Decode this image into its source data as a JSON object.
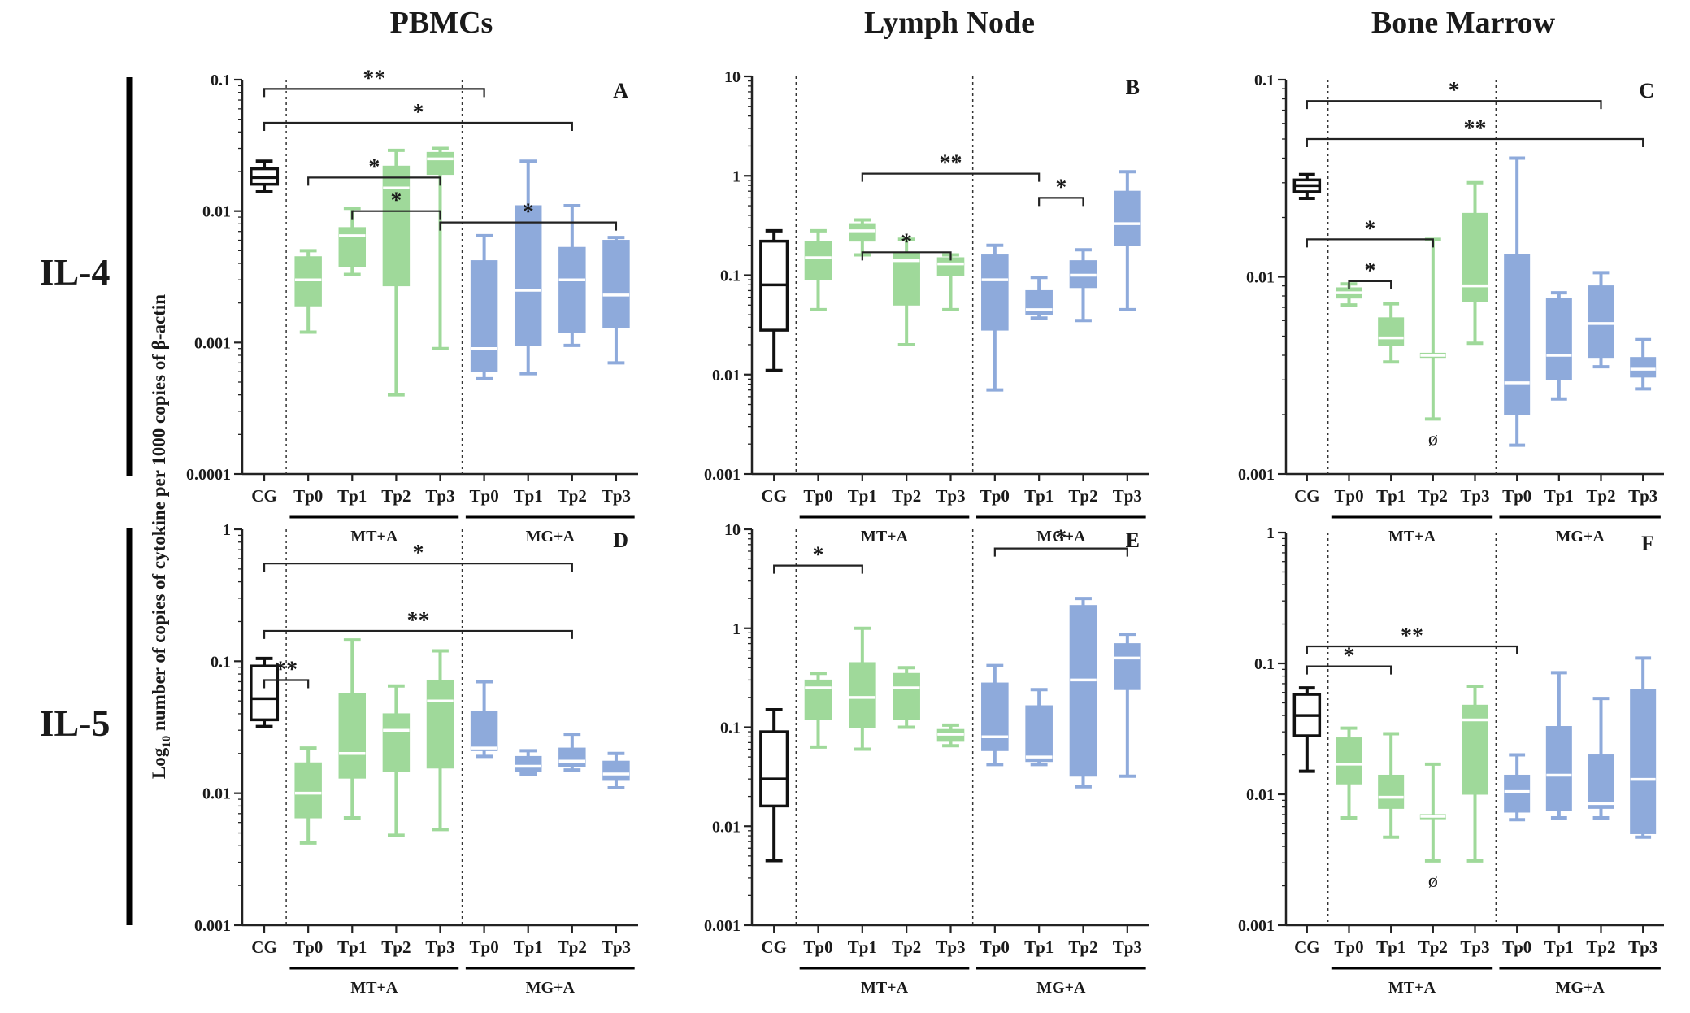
{
  "colors": {
    "cg": "#111111",
    "mt": "#9fd99a",
    "mg": "#8eaadb",
    "axis": "#222222"
  },
  "figure": {
    "column_titles": [
      "PBMCs",
      "Lymph Node",
      "Bone Marrow"
    ],
    "row_labels": [
      "IL-4",
      "IL-5"
    ],
    "ylabel_prefix": "Log",
    "ylabel_sub": "10",
    "ylabel_rest": " number of copies of cytokine per 1000 copies of β-actin",
    "groups": [
      "CG",
      "Tp0",
      "Tp1",
      "Tp2",
      "Tp3",
      "Tp0",
      "Tp1",
      "Tp2",
      "Tp3"
    ],
    "group_labels": [
      "MT+A",
      "MG+A"
    ]
  },
  "chart_data": [
    {
      "panel": "A",
      "type": "box",
      "cytokine": "IL-4",
      "tissue": "PBMCs",
      "scale": "log10",
      "ylim": [
        0.0001,
        0.1
      ],
      "ticks": [
        "0.1",
        "0.01",
        "0.001",
        "0.0001"
      ],
      "boxes": [
        {
          "group": "CG",
          "min": 0.014,
          "q1": 0.016,
          "median": 0.018,
          "q3": 0.021,
          "max": 0.024
        },
        {
          "group": "MT+A Tp0",
          "min": 0.0012,
          "q1": 0.0019,
          "median": 0.003,
          "q3": 0.0045,
          "max": 0.005
        },
        {
          "group": "MT+A Tp1",
          "min": 0.0033,
          "q1": 0.0038,
          "median": 0.0065,
          "q3": 0.0075,
          "max": 0.0105
        },
        {
          "group": "MT+A Tp2",
          "min": 0.0004,
          "q1": 0.0027,
          "median": 0.015,
          "q3": 0.022,
          "max": 0.029
        },
        {
          "group": "MT+A Tp3",
          "min": 0.0009,
          "q1": 0.019,
          "median": 0.025,
          "q3": 0.028,
          "max": 0.03
        },
        {
          "group": "MG+A Tp0",
          "min": 0.00053,
          "q1": 0.0006,
          "median": 0.0009,
          "q3": 0.0042,
          "max": 0.0065
        },
        {
          "group": "MG+A Tp1",
          "min": 0.00058,
          "q1": 0.00095,
          "median": 0.0025,
          "q3": 0.011,
          "max": 0.024
        },
        {
          "group": "MG+A Tp2",
          "min": 0.00095,
          "q1": 0.0012,
          "median": 0.003,
          "q3": 0.0053,
          "max": 0.011
        },
        {
          "group": "MG+A Tp3",
          "min": 0.0007,
          "q1": 0.0013,
          "median": 0.0023,
          "q3": 0.006,
          "max": 0.0063
        }
      ],
      "annotations": [
        "**",
        "*",
        "*",
        "*",
        "*"
      ]
    },
    {
      "panel": "B",
      "type": "box",
      "cytokine": "IL-4",
      "tissue": "Lymph Node",
      "scale": "log10",
      "ylim": [
        0.001,
        10
      ],
      "ticks": [
        "10",
        "1",
        "0.1",
        "0.01",
        "0.001"
      ],
      "boxes": [
        {
          "group": "CG",
          "min": 0.011,
          "q1": 0.028,
          "median": 0.08,
          "q3": 0.22,
          "max": 0.28
        },
        {
          "group": "MT+A Tp0",
          "min": 0.045,
          "q1": 0.09,
          "median": 0.15,
          "q3": 0.22,
          "max": 0.28
        },
        {
          "group": "MT+A Tp1",
          "min": 0.16,
          "q1": 0.22,
          "median": 0.28,
          "q3": 0.33,
          "max": 0.36
        },
        {
          "group": "MT+A Tp2",
          "min": 0.02,
          "q1": 0.05,
          "median": 0.14,
          "q3": 0.17,
          "max": 0.23
        },
        {
          "group": "MT+A Tp3",
          "min": 0.045,
          "q1": 0.1,
          "median": 0.13,
          "q3": 0.15,
          "max": 0.16
        },
        {
          "group": "MG+A Tp0",
          "min": 0.007,
          "q1": 0.028,
          "median": 0.09,
          "q3": 0.16,
          "max": 0.2
        },
        {
          "group": "MG+A Tp1",
          "min": 0.037,
          "q1": 0.04,
          "median": 0.045,
          "q3": 0.07,
          "max": 0.095
        },
        {
          "group": "MG+A Tp2",
          "min": 0.035,
          "q1": 0.075,
          "median": 0.1,
          "q3": 0.14,
          "max": 0.18
        },
        {
          "group": "MG+A Tp3",
          "min": 0.045,
          "q1": 0.2,
          "median": 0.33,
          "q3": 0.7,
          "max": 1.1
        }
      ],
      "annotations": [
        "**",
        "*",
        "*"
      ]
    },
    {
      "panel": "C",
      "type": "box",
      "cytokine": "IL-4",
      "tissue": "Bone Marrow",
      "scale": "log10",
      "ylim": [
        0.001,
        0.1
      ],
      "ticks": [
        "0.1",
        "0.01",
        "0.001"
      ],
      "boxes": [
        {
          "group": "CG",
          "min": 0.025,
          "q1": 0.027,
          "median": 0.029,
          "q3": 0.031,
          "max": 0.033
        },
        {
          "group": "MT+A Tp0",
          "min": 0.0072,
          "q1": 0.0078,
          "median": 0.0083,
          "q3": 0.0088,
          "max": 0.0092
        },
        {
          "group": "MT+A Tp1",
          "min": 0.0037,
          "q1": 0.0045,
          "median": 0.0049,
          "q3": 0.0062,
          "max": 0.0073
        },
        {
          "group": "MT+A Tp2",
          "min": 0.0019,
          "q1": 0.0039,
          "median": 0.004,
          "q3": 0.0041,
          "max": 0.0155
        },
        {
          "group": "MT+A Tp3",
          "min": 0.0046,
          "q1": 0.0075,
          "median": 0.009,
          "q3": 0.021,
          "max": 0.03
        },
        {
          "group": "MG+A Tp0",
          "min": 0.0014,
          "q1": 0.002,
          "median": 0.0029,
          "q3": 0.013,
          "max": 0.04
        },
        {
          "group": "MG+A Tp1",
          "min": 0.0024,
          "q1": 0.003,
          "median": 0.004,
          "q3": 0.0078,
          "max": 0.0083
        },
        {
          "group": "MG+A Tp2",
          "min": 0.0035,
          "q1": 0.0039,
          "median": 0.0058,
          "q3": 0.009,
          "max": 0.0105
        },
        {
          "group": "MG+A Tp3",
          "min": 0.0027,
          "q1": 0.0031,
          "median": 0.0034,
          "q3": 0.0039,
          "max": 0.0048
        }
      ],
      "annotations": [
        "*",
        "**",
        "*",
        "*"
      ],
      "symbols": [
        {
          "group": "MT+A Tp2",
          "text": "ø"
        }
      ]
    },
    {
      "panel": "D",
      "type": "box",
      "cytokine": "IL-5",
      "tissue": "PBMCs",
      "scale": "log10",
      "ylim": [
        0.001,
        1
      ],
      "ticks": [
        "1",
        "0.1",
        "0.01",
        "0.001"
      ],
      "boxes": [
        {
          "group": "CG",
          "min": 0.032,
          "q1": 0.036,
          "median": 0.052,
          "q3": 0.092,
          "max": 0.105
        },
        {
          "group": "MT+A Tp0",
          "min": 0.0042,
          "q1": 0.0065,
          "median": 0.01,
          "q3": 0.017,
          "max": 0.022
        },
        {
          "group": "MT+A Tp1",
          "min": 0.0065,
          "q1": 0.013,
          "median": 0.02,
          "q3": 0.057,
          "max": 0.145
        },
        {
          "group": "MT+A Tp2",
          "min": 0.0048,
          "q1": 0.0145,
          "median": 0.03,
          "q3": 0.04,
          "max": 0.065
        },
        {
          "group": "MT+A Tp3",
          "min": 0.0053,
          "q1": 0.0155,
          "median": 0.05,
          "q3": 0.072,
          "max": 0.12
        },
        {
          "group": "MG+A Tp0",
          "min": 0.019,
          "q1": 0.021,
          "median": 0.022,
          "q3": 0.042,
          "max": 0.07
        },
        {
          "group": "MG+A Tp1",
          "min": 0.014,
          "q1": 0.0145,
          "median": 0.016,
          "q3": 0.019,
          "max": 0.021
        },
        {
          "group": "MG+A Tp2",
          "min": 0.015,
          "q1": 0.016,
          "median": 0.0175,
          "q3": 0.022,
          "max": 0.028
        },
        {
          "group": "MG+A Tp3",
          "min": 0.011,
          "q1": 0.0125,
          "median": 0.014,
          "q3": 0.0175,
          "max": 0.02
        }
      ],
      "annotations": [
        "*",
        "**",
        "**"
      ]
    },
    {
      "panel": "E",
      "type": "box",
      "cytokine": "IL-5",
      "tissue": "Lymph Node",
      "scale": "log10",
      "ylim": [
        0.001,
        10
      ],
      "ticks": [
        "10",
        "1",
        "0.1",
        "0.01",
        "0.001"
      ],
      "boxes": [
        {
          "group": "CG",
          "min": 0.0045,
          "q1": 0.016,
          "median": 0.03,
          "q3": 0.09,
          "max": 0.15
        },
        {
          "group": "MT+A Tp0",
          "min": 0.063,
          "q1": 0.12,
          "median": 0.25,
          "q3": 0.3,
          "max": 0.35
        },
        {
          "group": "MT+A Tp1",
          "min": 0.06,
          "q1": 0.1,
          "median": 0.2,
          "q3": 0.45,
          "max": 1.0
        },
        {
          "group": "MT+A Tp2",
          "min": 0.1,
          "q1": 0.12,
          "median": 0.25,
          "q3": 0.35,
          "max": 0.4
        },
        {
          "group": "MT+A Tp3",
          "min": 0.065,
          "q1": 0.072,
          "median": 0.085,
          "q3": 0.095,
          "max": 0.105
        },
        {
          "group": "MG+A Tp0",
          "min": 0.042,
          "q1": 0.058,
          "median": 0.08,
          "q3": 0.28,
          "max": 0.42
        },
        {
          "group": "MG+A Tp1",
          "min": 0.042,
          "q1": 0.045,
          "median": 0.05,
          "q3": 0.165,
          "max": 0.24
        },
        {
          "group": "MG+A Tp2",
          "min": 0.025,
          "q1": 0.032,
          "median": 0.3,
          "q3": 1.7,
          "max": 2.0
        },
        {
          "group": "MG+A Tp3",
          "min": 0.032,
          "q1": 0.24,
          "median": 0.5,
          "q3": 0.7,
          "max": 0.87
        }
      ],
      "annotations": [
        "*",
        "*"
      ]
    },
    {
      "panel": "F",
      "type": "box",
      "cytokine": "IL-5",
      "tissue": "Bone Marrow",
      "scale": "log10",
      "ylim": [
        0.001,
        1
      ],
      "ticks": [
        "1",
        "0.1",
        "0.01",
        "0.001"
      ],
      "boxes": [
        {
          "group": "CG",
          "min": 0.015,
          "q1": 0.028,
          "median": 0.04,
          "q3": 0.058,
          "max": 0.065
        },
        {
          "group": "MT+A Tp0",
          "min": 0.0066,
          "q1": 0.012,
          "median": 0.017,
          "q3": 0.027,
          "max": 0.032
        },
        {
          "group": "MT+A Tp1",
          "min": 0.0047,
          "q1": 0.0078,
          "median": 0.0095,
          "q3": 0.014,
          "max": 0.029
        },
        {
          "group": "MT+A Tp2",
          "min": 0.0031,
          "q1": 0.0065,
          "median": 0.0068,
          "q3": 0.007,
          "max": 0.017
        },
        {
          "group": "MT+A Tp3",
          "min": 0.0031,
          "q1": 0.01,
          "median": 0.037,
          "q3": 0.048,
          "max": 0.067
        },
        {
          "group": "MG+A Tp0",
          "min": 0.0064,
          "q1": 0.0073,
          "median": 0.0105,
          "q3": 0.014,
          "max": 0.02
        },
        {
          "group": "MG+A Tp1",
          "min": 0.0066,
          "q1": 0.0075,
          "median": 0.014,
          "q3": 0.033,
          "max": 0.085
        },
        {
          "group": "MG+A Tp2",
          "min": 0.0066,
          "q1": 0.0078,
          "median": 0.0085,
          "q3": 0.02,
          "max": 0.054
        },
        {
          "group": "MG+A Tp3",
          "min": 0.0047,
          "q1": 0.005,
          "median": 0.013,
          "q3": 0.063,
          "max": 0.11
        }
      ],
      "annotations": [
        "**",
        "*"
      ],
      "symbols": [
        {
          "group": "MT+A Tp2",
          "text": "ø"
        }
      ]
    }
  ]
}
